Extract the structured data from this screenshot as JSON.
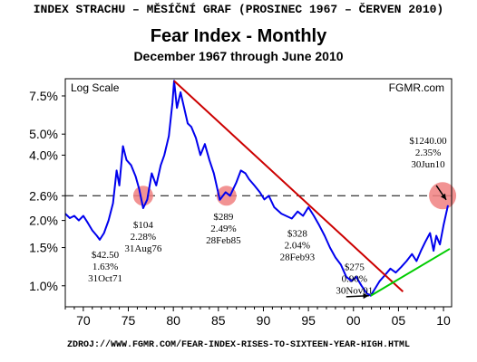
{
  "header": {
    "text": "INDEX STRACHU – MĚSÍČNÍ GRAF (PROSINEC 1967 – ČERVEN 2010)"
  },
  "footer": {
    "source": "ZDROJ://WWW.FGMR.COM/FEAR-INDEX-RISES-TO-SIXTEEN-YEAR-HIGH.HTML"
  },
  "chart_data": {
    "type": "line",
    "title": "Fear Index - Monthly",
    "subtitle": "December 1967 through June 2010",
    "scale_label": "Log Scale",
    "source_label": "FGMR.com",
    "y_scale": "log",
    "xlim": [
      1968,
      2010.9
    ],
    "ylim": [
      0.8,
      9.0
    ],
    "x_ticks": [
      {
        "value": 1970,
        "label": "70"
      },
      {
        "value": 1975,
        "label": "75"
      },
      {
        "value": 1980,
        "label": "80"
      },
      {
        "value": 1985,
        "label": "85"
      },
      {
        "value": 1990,
        "label": "90"
      },
      {
        "value": 1995,
        "label": "95"
      },
      {
        "value": 2000,
        "label": "00"
      },
      {
        "value": 2005,
        "label": "05"
      },
      {
        "value": 2010,
        "label": "10"
      }
    ],
    "y_ticks": [
      {
        "value": 1.0,
        "label": "1.0%"
      },
      {
        "value": 1.5,
        "label": "1.5%"
      },
      {
        "value": 2.0,
        "label": "2.0%"
      },
      {
        "value": 2.6,
        "label": "2.6%"
      },
      {
        "value": 4.0,
        "label": "4.0%"
      },
      {
        "value": 5.0,
        "label": "5.0%"
      },
      {
        "value": 7.5,
        "label": "7.5%"
      }
    ],
    "grid": false,
    "series": [
      {
        "color": "#0000ee",
        "points": [
          [
            1968.0,
            2.15
          ],
          [
            1968.5,
            2.05
          ],
          [
            1969.0,
            2.1
          ],
          [
            1969.5,
            2.0
          ],
          [
            1970.0,
            2.1
          ],
          [
            1970.5,
            1.95
          ],
          [
            1971.0,
            1.8
          ],
          [
            1971.5,
            1.7
          ],
          [
            1971.83,
            1.63
          ],
          [
            1972.3,
            1.75
          ],
          [
            1972.8,
            2.0
          ],
          [
            1973.3,
            2.4
          ],
          [
            1973.7,
            3.4
          ],
          [
            1974.0,
            2.9
          ],
          [
            1974.4,
            4.4
          ],
          [
            1974.8,
            3.8
          ],
          [
            1975.3,
            3.6
          ],
          [
            1975.8,
            3.2
          ],
          [
            1976.2,
            2.8
          ],
          [
            1976.65,
            2.28
          ],
          [
            1977.1,
            2.5
          ],
          [
            1977.6,
            3.3
          ],
          [
            1978.1,
            2.9
          ],
          [
            1978.6,
            3.6
          ],
          [
            1979.0,
            4.0
          ],
          [
            1979.5,
            4.9
          ],
          [
            1979.9,
            7.0
          ],
          [
            1980.08,
            8.8
          ],
          [
            1980.4,
            6.6
          ],
          [
            1980.8,
            7.8
          ],
          [
            1981.2,
            6.6
          ],
          [
            1981.6,
            5.6
          ],
          [
            1982.0,
            5.4
          ],
          [
            1982.5,
            4.8
          ],
          [
            1983.0,
            4.0
          ],
          [
            1983.5,
            4.5
          ],
          [
            1984.0,
            3.8
          ],
          [
            1984.5,
            3.3
          ],
          [
            1985.16,
            2.49
          ],
          [
            1985.8,
            2.7
          ],
          [
            1986.3,
            2.6
          ],
          [
            1987.0,
            3.0
          ],
          [
            1987.5,
            3.4
          ],
          [
            1988.0,
            3.3
          ],
          [
            1988.4,
            3.1
          ],
          [
            1989.0,
            2.9
          ],
          [
            1989.6,
            2.7
          ],
          [
            1990.1,
            2.5
          ],
          [
            1990.6,
            2.6
          ],
          [
            1991.2,
            2.3
          ],
          [
            1992.0,
            2.15
          ],
          [
            1993.16,
            2.04
          ],
          [
            1993.8,
            2.2
          ],
          [
            1994.4,
            2.1
          ],
          [
            1995.0,
            2.3
          ],
          [
            1995.6,
            2.1
          ],
          [
            1996.2,
            1.9
          ],
          [
            1996.8,
            1.7
          ],
          [
            1997.4,
            1.5
          ],
          [
            1998.0,
            1.35
          ],
          [
            1998.6,
            1.25
          ],
          [
            1999.2,
            1.1
          ],
          [
            1999.8,
            1.05
          ],
          [
            2000.3,
            1.1
          ],
          [
            2000.9,
            1.0
          ],
          [
            2001.5,
            0.92
          ],
          [
            2001.92,
            0.9
          ],
          [
            2002.4,
            0.97
          ],
          [
            2002.9,
            1.05
          ],
          [
            2003.5,
            1.12
          ],
          [
            2004.1,
            1.2
          ],
          [
            2004.7,
            1.15
          ],
          [
            2005.3,
            1.22
          ],
          [
            2005.9,
            1.3
          ],
          [
            2006.5,
            1.4
          ],
          [
            2007.0,
            1.3
          ],
          [
            2007.5,
            1.45
          ],
          [
            2008.0,
            1.6
          ],
          [
            2008.5,
            1.75
          ],
          [
            2008.9,
            1.45
          ],
          [
            2009.2,
            1.7
          ],
          [
            2009.6,
            1.55
          ],
          [
            2010.0,
            1.9
          ],
          [
            2010.5,
            2.35
          ]
        ]
      }
    ],
    "trendlines": [
      {
        "name": "resistance",
        "color": "#cc0000",
        "from": [
          1980.08,
          8.8
        ],
        "to": [
          2005.5,
          0.94
        ]
      },
      {
        "name": "support",
        "color": "#00cc00",
        "from": [
          2001.92,
          0.9
        ],
        "to": [
          2010.7,
          1.48
        ]
      }
    ],
    "reference_line": {
      "value": 2.6,
      "style": "dashed"
    },
    "markers": [
      {
        "x": 1976.65,
        "y": 2.6
      },
      {
        "x": 1985.9,
        "y": 2.6
      },
      {
        "x": 2009.9,
        "y": 2.6
      }
    ],
    "annotations": [
      {
        "x": 1971.83,
        "y": 1.63,
        "lines": [
          "$42.50",
          "1.63%",
          "31Oct71"
        ]
      },
      {
        "x": 1976.65,
        "y": 2.28,
        "lines": [
          "$104",
          "2.28%",
          "31Aug76"
        ]
      },
      {
        "x": 1985.16,
        "y": 2.49,
        "lines": [
          "$289",
          "2.49%",
          "28Feb85"
        ]
      },
      {
        "x": 1993.16,
        "y": 2.04,
        "lines": [
          "$328",
          "2.04%",
          "28Feb93"
        ]
      },
      {
        "x": 2001.92,
        "y": 0.9,
        "lines": [
          "$275",
          "0.90%",
          "30Nov01"
        ]
      },
      {
        "x": 2010.5,
        "y": 2.35,
        "lines": [
          "$1240.00",
          "2.35%",
          "30Jun10"
        ]
      }
    ]
  }
}
